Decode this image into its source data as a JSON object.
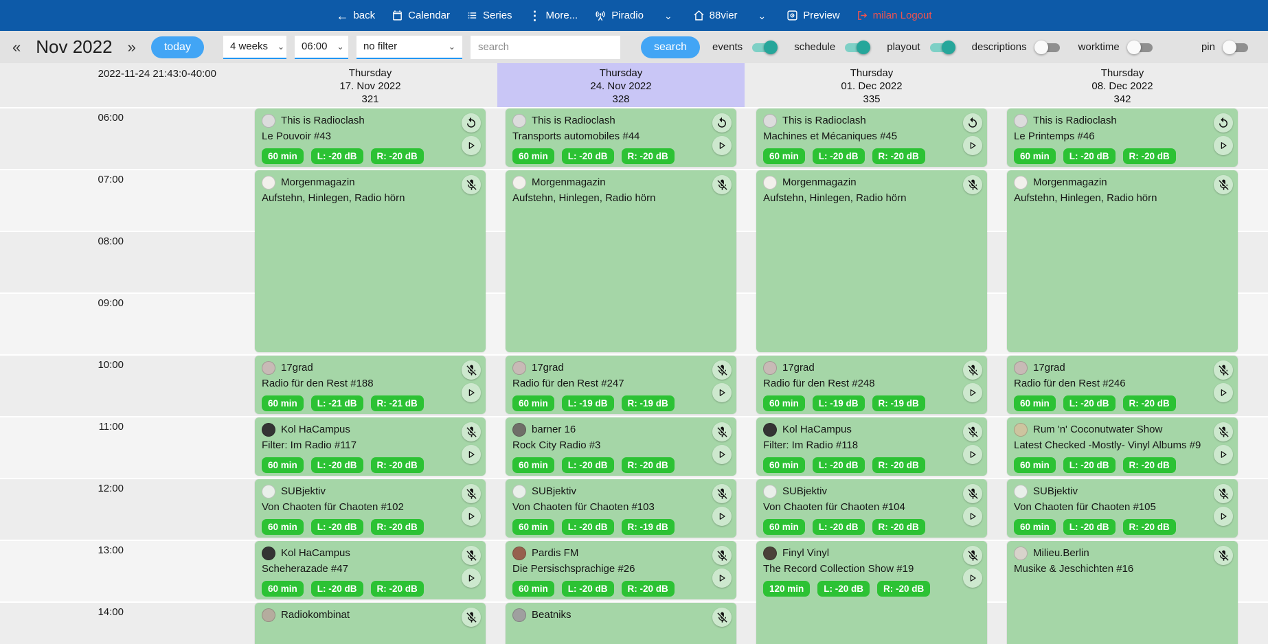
{
  "colors": {
    "navbar": "#0d5aa8",
    "accent": "#42a5f5",
    "badge": "#2cc234",
    "card": "#a5d6a7",
    "highlight": "#c9c6f6",
    "toggle-on": "#26a69a",
    "logout": "#ef5350"
  },
  "navbar": {
    "back": "back",
    "calendar": "Calendar",
    "series": "Series",
    "more": "More...",
    "piradio": "Piradio",
    "station": "88vier",
    "preview": "Preview",
    "logout": "milan Logout",
    "chevron": "⌄"
  },
  "toolbar": {
    "prev": "«",
    "month": "Nov 2022",
    "next": "»",
    "today": "today",
    "range_select": "4 weeks",
    "time_select": "06:00",
    "filter_select": "no filter",
    "search_placeholder": "search",
    "search_button": "search",
    "toggles": [
      {
        "name": "events",
        "label": "events",
        "on": true
      },
      {
        "name": "schedule",
        "label": "schedule",
        "on": true
      },
      {
        "name": "playout",
        "label": "playout",
        "on": true
      },
      {
        "name": "descriptions",
        "label": "descriptions",
        "on": false
      },
      {
        "name": "worktime",
        "label": "worktime",
        "on": false
      },
      {
        "name": "pin",
        "label": "pin",
        "on": false
      }
    ]
  },
  "calendar": {
    "now_label": "2022-11-24 21:43:0-40:00",
    "hours": [
      "06:00",
      "07:00",
      "08:00",
      "09:00",
      "10:00",
      "11:00",
      "12:00",
      "13:00",
      "14:00"
    ],
    "columns": [
      {
        "weekday": "Thursday",
        "date": "17. Nov 2022",
        "number": "321",
        "highlight": false,
        "events": [
          {
            "show": "This is Radioclash",
            "title": "Le Pouvoir #43",
            "start": 6,
            "dur": 60,
            "badges": [
              "60 min",
              "L: -20 dB",
              "R: -20 dB"
            ],
            "top_icon": "replay-icon",
            "play": true,
            "avatar": "#dcdcdc"
          },
          {
            "show": "Morgenmagazin",
            "title": "Aufstehn, Hinlegen, Radio hörn",
            "start": 7,
            "dur": 180,
            "badges": [],
            "top_icon": "mic-off-icon",
            "play": false,
            "avatar": "#f2f0ec"
          },
          {
            "show": "17grad",
            "title": "Radio für den Rest #188",
            "start": 10,
            "dur": 60,
            "badges": [
              "60 min",
              "L: -21 dB",
              "R: -21 dB"
            ],
            "top_icon": "mic-off-icon",
            "play": true,
            "avatar": "#c8bab6"
          },
          {
            "show": "Kol HaCampus",
            "title": "Filter: Im Radio #117",
            "start": 11,
            "dur": 60,
            "badges": [
              "60 min",
              "L: -20 dB",
              "R: -20 dB"
            ],
            "top_icon": "mic-off-icon",
            "play": true,
            "avatar": "#343434"
          },
          {
            "show": "SUBjektiv",
            "title": "Von Chaoten für Chaoten #102",
            "start": 12,
            "dur": 60,
            "badges": [
              "60 min",
              "L: -20 dB",
              "R: -20 dB"
            ],
            "top_icon": "mic-off-icon",
            "play": true,
            "avatar": "#e9efea"
          },
          {
            "show": "Kol HaCampus",
            "title": "Scheherazade #47",
            "start": 13,
            "dur": 60,
            "badges": [
              "60 min",
              "L: -20 dB",
              "R: -20 dB"
            ],
            "top_icon": "mic-off-icon",
            "play": true,
            "avatar": "#343434"
          },
          {
            "show": "Radiokombinat",
            "title": "",
            "start": 14,
            "dur": 60,
            "badges": [],
            "top_icon": "mic-off-icon",
            "play": false,
            "avatar": "#b5ac9e"
          }
        ]
      },
      {
        "weekday": "Thursday",
        "date": "24. Nov 2022",
        "number": "328",
        "highlight": true,
        "events": [
          {
            "show": "This is Radioclash",
            "title": "Transports automobiles #44",
            "start": 6,
            "dur": 60,
            "badges": [
              "60 min",
              "L: -20 dB",
              "R: -20 dB"
            ],
            "top_icon": "replay-icon",
            "play": true,
            "avatar": "#dcdcdc"
          },
          {
            "show": "Morgenmagazin",
            "title": "Aufstehn, Hinlegen, Radio hörn",
            "start": 7,
            "dur": 180,
            "badges": [],
            "top_icon": "mic-off-icon",
            "play": false,
            "avatar": "#f2f0ec"
          },
          {
            "show": "17grad",
            "title": "Radio für den Rest #247",
            "start": 10,
            "dur": 60,
            "badges": [
              "60 min",
              "L: -19 dB",
              "R: -19 dB"
            ],
            "top_icon": "mic-off-icon",
            "play": true,
            "avatar": "#c8bab6"
          },
          {
            "show": "barner 16",
            "title": "Rock City Radio #3",
            "start": 11,
            "dur": 60,
            "badges": [
              "60 min",
              "L: -20 dB",
              "R: -20 dB"
            ],
            "top_icon": "mic-off-icon",
            "play": true,
            "avatar": "#6f6f68"
          },
          {
            "show": "SUBjektiv",
            "title": "Von Chaoten für Chaoten #103",
            "start": 12,
            "dur": 60,
            "badges": [
              "60 min",
              "L: -20 dB",
              "R: -19 dB"
            ],
            "top_icon": "mic-off-icon",
            "play": true,
            "avatar": "#e9efea"
          },
          {
            "show": "Pardis FM",
            "title": "Die Persischsprachige #26",
            "start": 13,
            "dur": 60,
            "badges": [
              "60 min",
              "L: -20 dB",
              "R: -20 dB"
            ],
            "top_icon": "mic-off-icon",
            "play": true,
            "avatar": "#96604e"
          },
          {
            "show": "Beatniks",
            "title": "",
            "start": 14,
            "dur": 60,
            "badges": [],
            "top_icon": "mic-off-icon",
            "play": false,
            "avatar": "#9f9f9f"
          }
        ]
      },
      {
        "weekday": "Thursday",
        "date": "01. Dec 2022",
        "number": "335",
        "highlight": false,
        "events": [
          {
            "show": "This is Radioclash",
            "title": "Machines et Mécaniques #45",
            "start": 6,
            "dur": 60,
            "badges": [
              "60 min",
              "L: -20 dB",
              "R: -20 dB"
            ],
            "top_icon": "replay-icon",
            "play": true,
            "avatar": "#dcdcdc"
          },
          {
            "show": "Morgenmagazin",
            "title": "Aufstehn, Hinlegen, Radio hörn",
            "start": 7,
            "dur": 180,
            "badges": [],
            "top_icon": "mic-off-icon",
            "play": false,
            "avatar": "#f2f0ec"
          },
          {
            "show": "17grad",
            "title": "Radio für den Rest #248",
            "start": 10,
            "dur": 60,
            "badges": [
              "60 min",
              "L: -19 dB",
              "R: -19 dB"
            ],
            "top_icon": "mic-off-icon",
            "play": true,
            "avatar": "#c8bab6"
          },
          {
            "show": "Kol HaCampus",
            "title": "Filter: Im Radio #118",
            "start": 11,
            "dur": 60,
            "badges": [
              "60 min",
              "L: -20 dB",
              "R: -20 dB"
            ],
            "top_icon": "mic-off-icon",
            "play": true,
            "avatar": "#343434"
          },
          {
            "show": "SUBjektiv",
            "title": "Von Chaoten für Chaoten #104",
            "start": 12,
            "dur": 60,
            "badges": [
              "60 min",
              "L: -20 dB",
              "R: -20 dB"
            ],
            "top_icon": "mic-off-icon",
            "play": true,
            "avatar": "#e9efea"
          },
          {
            "show": "Finyl Vinyl",
            "title": "The Record Collection Show #19",
            "start": 13,
            "dur": 120,
            "badges": [
              "120 min",
              "L: -20 dB",
              "R: -20 dB"
            ],
            "top_icon": "mic-off-icon",
            "play": true,
            "avatar": "#4a4139"
          }
        ]
      },
      {
        "weekday": "Thursday",
        "date": "08. Dec 2022",
        "number": "342",
        "highlight": false,
        "events": [
          {
            "show": "This is Radioclash",
            "title": "Le Printemps #46",
            "start": 6,
            "dur": 60,
            "badges": [
              "60 min",
              "L: -20 dB",
              "R: -20 dB"
            ],
            "top_icon": "replay-icon",
            "play": true,
            "avatar": "#dcdcdc"
          },
          {
            "show": "Morgenmagazin",
            "title": "Aufstehn, Hinlegen, Radio hörn",
            "start": 7,
            "dur": 180,
            "badges": [],
            "top_icon": "mic-off-icon",
            "play": false,
            "avatar": "#f2f0ec"
          },
          {
            "show": "17grad",
            "title": "Radio für den Rest #246",
            "start": 10,
            "dur": 60,
            "badges": [
              "60 min",
              "L: -20 dB",
              "R: -20 dB"
            ],
            "top_icon": "mic-off-icon",
            "play": true,
            "avatar": "#c8bab6"
          },
          {
            "show": "Rum 'n' Coconutwater Show",
            "title": "Latest Checked -Mostly- Vinyl Albums #9",
            "start": 11,
            "dur": 60,
            "badges": [
              "60 min",
              "L: -20 dB",
              "R: -20 dB"
            ],
            "top_icon": "mic-off-icon",
            "play": true,
            "avatar": "#cdc49f"
          },
          {
            "show": "SUBjektiv",
            "title": "Von Chaoten für Chaoten #105",
            "start": 12,
            "dur": 60,
            "badges": [
              "60 min",
              "L: -20 dB",
              "R: -20 dB"
            ],
            "top_icon": "mic-off-icon",
            "play": true,
            "avatar": "#e9efea"
          },
          {
            "show": "Milieu.Berlin",
            "title": "Musike & Jeschichten #16",
            "start": 13,
            "dur": 120,
            "badges": [],
            "top_icon": "mic-off-icon",
            "play": false,
            "avatar": "#d8d3cb"
          }
        ]
      }
    ]
  }
}
